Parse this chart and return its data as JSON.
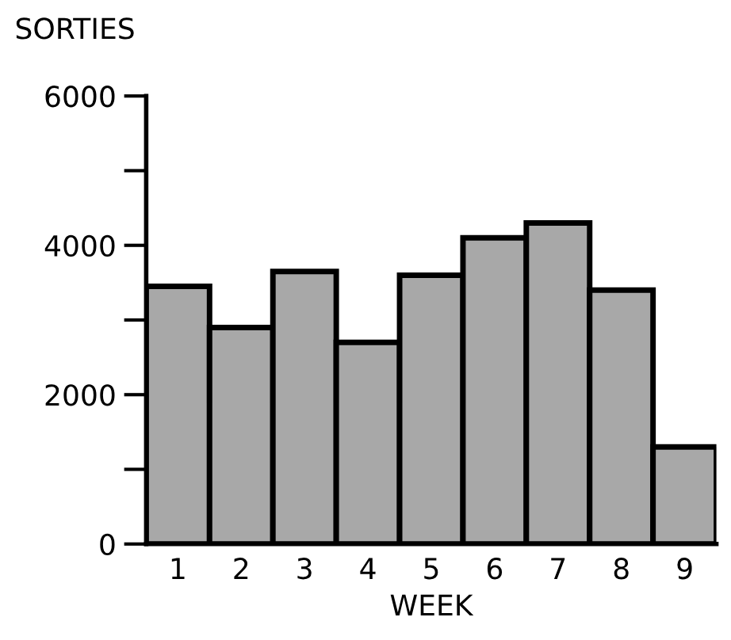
{
  "chart_data": {
    "type": "bar",
    "title": "SORTIES",
    "xlabel": "WEEK",
    "categories": [
      "1",
      "2",
      "3",
      "4",
      "5",
      "6",
      "7",
      "8",
      "9"
    ],
    "values": [
      3450,
      2900,
      3650,
      2700,
      3600,
      4100,
      4300,
      3400,
      1300
    ],
    "color": "#a8a8a8",
    "ylim": [
      0,
      6000
    ],
    "yticks": [
      0,
      {
        "value": 1000,
        "label": null
      },
      2000,
      {
        "value": 3000,
        "label": null
      },
      4000,
      {
        "value": 5000,
        "label": null
      },
      6000
    ],
    "grid": false,
    "legend": false
  }
}
